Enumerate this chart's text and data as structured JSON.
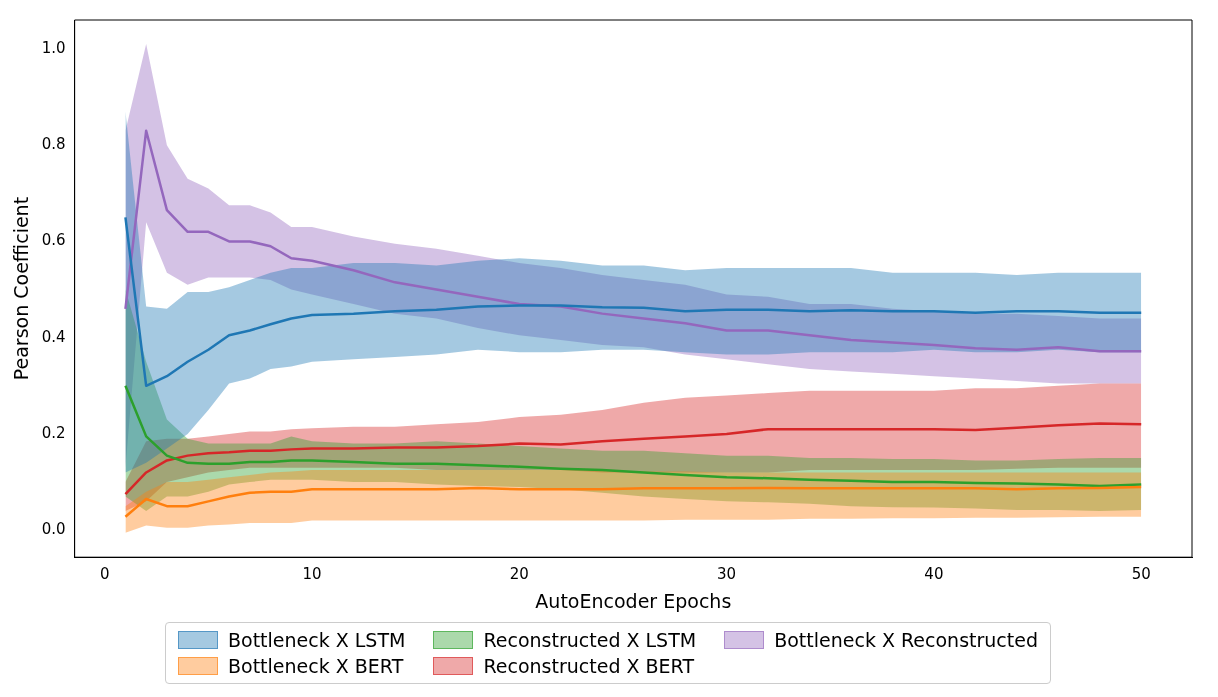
{
  "chart_data": {
    "type": "line",
    "xlabel": "AutoEncoder Epochs",
    "ylabel": "Pearson Coefficient",
    "x": [
      1,
      2,
      3,
      4,
      5,
      6,
      7,
      8,
      9,
      10,
      12,
      14,
      16,
      18,
      20,
      22,
      24,
      26,
      28,
      30,
      32,
      34,
      36,
      38,
      40,
      42,
      44,
      46,
      48,
      50
    ],
    "xlim": [
      -1.45,
      52.45
    ],
    "xticks": [
      0,
      10,
      20,
      30,
      40,
      50
    ],
    "ylim": [
      -0.056,
      1.06
    ],
    "yticks": [
      {
        "value": 0,
        "label": "0.0"
      },
      {
        "value": 0.2,
        "label": "0.2"
      },
      {
        "value": 0.4,
        "label": "0.4"
      },
      {
        "value": 0.6,
        "label": "0.6"
      },
      {
        "value": 0.8,
        "label": "0.8"
      },
      {
        "value": 1,
        "label": "1.0"
      }
    ],
    "grid": false,
    "legend": "bottom",
    "marker": "none",
    "line_style": "solid",
    "series": [
      {
        "name": "Bottleneck X LSTM",
        "color": "#1f77b4",
        "values": [
          0.65,
          0.3,
          0.32,
          0.35,
          0.375,
          0.405,
          0.415,
          0.428,
          0.44,
          0.447,
          0.45,
          0.455,
          0.458,
          0.465,
          0.467,
          0.467,
          0.463,
          0.462,
          0.455,
          0.458,
          0.458,
          0.455,
          0.457,
          0.455,
          0.455,
          0.452,
          0.455,
          0.455,
          0.452,
          0.452
        ],
        "upper": [
          0.87,
          0.465,
          0.46,
          0.495,
          0.495,
          0.505,
          0.52,
          0.535,
          0.545,
          0.545,
          0.555,
          0.555,
          0.55,
          0.56,
          0.565,
          0.56,
          0.55,
          0.55,
          0.54,
          0.545,
          0.545,
          0.545,
          0.545,
          0.535,
          0.535,
          0.535,
          0.53,
          0.535,
          0.535,
          0.535
        ],
        "lower": [
          0.12,
          0.14,
          0.17,
          0.2,
          0.25,
          0.305,
          0.315,
          0.335,
          0.34,
          0.35,
          0.355,
          0.36,
          0.365,
          0.375,
          0.37,
          0.37,
          0.375,
          0.375,
          0.37,
          0.365,
          0.365,
          0.37,
          0.37,
          0.37,
          0.375,
          0.37,
          0.37,
          0.375,
          0.37,
          0.37
        ]
      },
      {
        "name": "Bottleneck X BERT",
        "color": "#ff7f0e",
        "values": [
          0.028,
          0.065,
          0.05,
          0.05,
          0.06,
          0.07,
          0.078,
          0.08,
          0.08,
          0.085,
          0.085,
          0.085,
          0.085,
          0.088,
          0.085,
          0.085,
          0.085,
          0.087,
          0.087,
          0.087,
          0.088,
          0.087,
          0.087,
          0.087,
          0.087,
          0.087,
          0.085,
          0.087,
          0.088,
          0.09
        ],
        "upper": [
          0.05,
          0.08,
          0.1,
          0.1,
          0.105,
          0.11,
          0.115,
          0.12,
          0.122,
          0.125,
          0.125,
          0.125,
          0.125,
          0.125,
          0.125,
          0.125,
          0.125,
          0.122,
          0.122,
          0.12,
          0.12,
          0.12,
          0.12,
          0.12,
          0.12,
          0.12,
          0.12,
          0.12,
          0.12,
          0.12
        ],
        "lower": [
          -0.005,
          0.01,
          0.005,
          0.005,
          0.01,
          0.012,
          0.015,
          0.015,
          0.015,
          0.02,
          0.02,
          0.02,
          0.02,
          0.02,
          0.02,
          0.02,
          0.02,
          0.02,
          0.022,
          0.022,
          0.022,
          0.024,
          0.024,
          0.025,
          0.025,
          0.026,
          0.026,
          0.027,
          0.028,
          0.028
        ]
      },
      {
        "name": "Reconstructed X LSTM",
        "color": "#2ca02c",
        "values": [
          0.3,
          0.195,
          0.155,
          0.14,
          0.138,
          0.138,
          0.142,
          0.142,
          0.145,
          0.145,
          0.142,
          0.138,
          0.138,
          0.135,
          0.132,
          0.128,
          0.125,
          0.12,
          0.115,
          0.11,
          0.108,
          0.105,
          0.103,
          0.1,
          0.1,
          0.098,
          0.097,
          0.095,
          0.092,
          0.095
        ],
        "upper": [
          0.5,
          0.35,
          0.23,
          0.19,
          0.18,
          0.18,
          0.18,
          0.18,
          0.195,
          0.185,
          0.18,
          0.18,
          0.185,
          0.18,
          0.175,
          0.17,
          0.165,
          0.165,
          0.16,
          0.155,
          0.155,
          0.15,
          0.15,
          0.148,
          0.148,
          0.145,
          0.145,
          0.148,
          0.15,
          0.15
        ],
        "lower": [
          0.07,
          0.04,
          0.07,
          0.07,
          0.08,
          0.095,
          0.1,
          0.105,
          0.105,
          0.105,
          0.1,
          0.1,
          0.095,
          0.092,
          0.09,
          0.085,
          0.078,
          0.07,
          0.065,
          0.06,
          0.058,
          0.055,
          0.05,
          0.048,
          0.047,
          0.045,
          0.042,
          0.042,
          0.04,
          0.042
        ]
      },
      {
        "name": "Reconstructed X BERT",
        "color": "#d62728",
        "values": [
          0.075,
          0.12,
          0.145,
          0.155,
          0.16,
          0.162,
          0.165,
          0.165,
          0.168,
          0.17,
          0.17,
          0.172,
          0.172,
          0.175,
          0.18,
          0.178,
          0.185,
          0.19,
          0.195,
          0.2,
          0.21,
          0.21,
          0.21,
          0.21,
          0.21,
          0.208,
          0.213,
          0.218,
          0.222,
          0.22
        ],
        "upper": [
          0.1,
          0.185,
          0.19,
          0.19,
          0.195,
          0.2,
          0.205,
          0.205,
          0.21,
          0.212,
          0.215,
          0.215,
          0.22,
          0.225,
          0.235,
          0.24,
          0.25,
          0.265,
          0.275,
          0.28,
          0.285,
          0.29,
          0.29,
          0.29,
          0.29,
          0.295,
          0.295,
          0.3,
          0.305,
          0.305
        ],
        "lower": [
          0.04,
          0.06,
          0.1,
          0.11,
          0.12,
          0.125,
          0.13,
          0.13,
          0.13,
          0.13,
          0.13,
          0.13,
          0.125,
          0.125,
          0.125,
          0.125,
          0.12,
          0.12,
          0.12,
          0.12,
          0.12,
          0.125,
          0.125,
          0.125,
          0.125,
          0.125,
          0.128,
          0.13,
          0.13,
          0.13
        ]
      },
      {
        "name": "Bottleneck X Reconstructed",
        "color": "#9467bd",
        "values": [
          0.46,
          0.83,
          0.665,
          0.62,
          0.62,
          0.6,
          0.6,
          0.59,
          0.565,
          0.56,
          0.54,
          0.515,
          0.5,
          0.485,
          0.47,
          0.465,
          0.45,
          0.44,
          0.43,
          0.415,
          0.415,
          0.405,
          0.395,
          0.39,
          0.385,
          0.378,
          0.375,
          0.38,
          0.372,
          0.372
        ],
        "upper": [
          0.83,
          1.01,
          0.8,
          0.73,
          0.71,
          0.675,
          0.675,
          0.66,
          0.63,
          0.63,
          0.61,
          0.595,
          0.585,
          0.57,
          0.555,
          0.545,
          0.53,
          0.52,
          0.51,
          0.49,
          0.485,
          0.47,
          0.47,
          0.46,
          0.455,
          0.45,
          0.45,
          0.445,
          0.44,
          0.44
        ],
        "lower": [
          0.13,
          0.64,
          0.535,
          0.51,
          0.525,
          0.525,
          0.525,
          0.52,
          0.5,
          0.49,
          0.47,
          0.45,
          0.44,
          0.42,
          0.405,
          0.395,
          0.385,
          0.38,
          0.365,
          0.355,
          0.345,
          0.335,
          0.33,
          0.325,
          0.32,
          0.315,
          0.31,
          0.305,
          0.305,
          0.305
        ]
      }
    ]
  }
}
